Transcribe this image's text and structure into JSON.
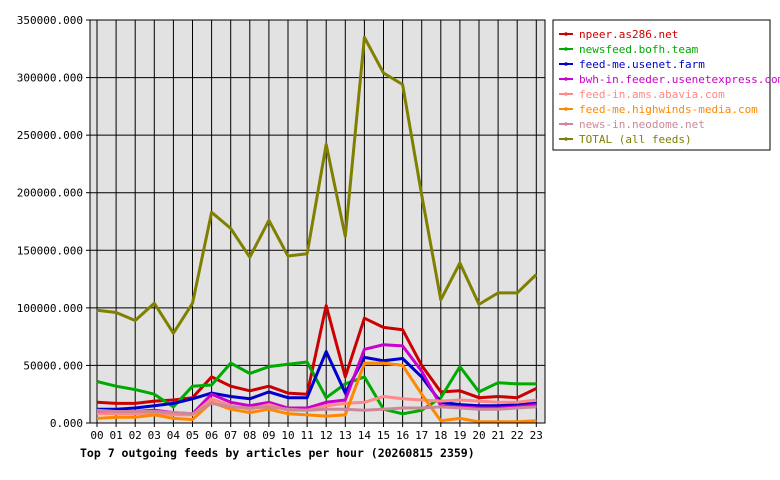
{
  "chart_data": {
    "type": "line",
    "title": "Top 7 outgoing feeds by articles per hour (20260815 2359)",
    "xlabel": "",
    "ylabel": "",
    "categories": [
      "00",
      "01",
      "02",
      "03",
      "04",
      "05",
      "06",
      "07",
      "08",
      "09",
      "10",
      "11",
      "12",
      "13",
      "14",
      "15",
      "16",
      "17",
      "18",
      "19",
      "20",
      "21",
      "22",
      "23"
    ],
    "yticks": [
      "0.000",
      "50000.000",
      "100000.000",
      "150000.000",
      "200000.000",
      "250000.000",
      "300000.000",
      "350000.000"
    ],
    "ylim": [
      0,
      350000
    ],
    "grid": true,
    "legend_position": "right",
    "plot_background": "#e2e2e2",
    "series": [
      {
        "name": "npeer.as286.net",
        "color": "#cc0000",
        "values": [
          18000,
          17000,
          17000,
          19000,
          20000,
          22000,
          40000,
          32000,
          28000,
          32000,
          26000,
          25000,
          102000,
          40000,
          91000,
          83000,
          81000,
          50000,
          27000,
          28000,
          22000,
          23000,
          22000,
          30000
        ]
      },
      {
        "name": "newsfeed.bofh.team",
        "color": "#00aa00",
        "values": [
          36000,
          32000,
          29000,
          25000,
          14000,
          32000,
          33000,
          52000,
          43000,
          49000,
          51000,
          53000,
          22000,
          34000,
          40000,
          12000,
          8000,
          11000,
          22000,
          49000,
          27000,
          35000,
          34000,
          34000
        ]
      },
      {
        "name": "feed-me.usenet.farm",
        "color": "#0000cc",
        "values": [
          12000,
          12000,
          13000,
          15000,
          17000,
          21000,
          26000,
          23000,
          21000,
          27000,
          22000,
          22000,
          62000,
          26000,
          57000,
          54000,
          56000,
          40000,
          18000,
          16000,
          15000,
          15000,
          16000,
          17000
        ]
      },
      {
        "name": "bwh-in.feeder.usenetexpress.com",
        "color": "#cc00cc",
        "values": [
          10000,
          10000,
          10000,
          11000,
          9000,
          8000,
          25000,
          18000,
          15000,
          18000,
          13000,
          13000,
          18000,
          20000,
          64000,
          68000,
          67000,
          45000,
          15000,
          14000,
          13000,
          13000,
          14000,
          16000
        ]
      },
      {
        "name": "feed-in.ams.abavia.com",
        "color": "#ff8888",
        "values": [
          8000,
          8000,
          8000,
          9000,
          7000,
          7000,
          21000,
          15000,
          12000,
          16000,
          11000,
          11000,
          15000,
          17000,
          18000,
          23000,
          21000,
          20000,
          19000,
          20000,
          19000,
          18000,
          18000,
          20000
        ]
      },
      {
        "name": "feed-me.highwinds-media.com",
        "color": "#ff8800",
        "values": [
          4000,
          5000,
          5000,
          7000,
          4000,
          3000,
          18000,
          12000,
          9000,
          12000,
          8000,
          7000,
          6000,
          7000,
          52000,
          52000,
          50000,
          25000,
          2000,
          4000,
          1000,
          1000,
          1000,
          2000
        ]
      },
      {
        "name": "news-in.neodome.net",
        "color": "#cc8899",
        "values": [
          11000,
          10000,
          10000,
          10000,
          9000,
          8000,
          17000,
          14000,
          13000,
          14000,
          12000,
          11000,
          12000,
          12000,
          11000,
          12000,
          13000,
          13000,
          14000,
          13000,
          12000,
          12000,
          13000,
          14000
        ]
      },
      {
        "name": "TOTAL (all feeds)",
        "color": "#808000",
        "values": [
          98000,
          96000,
          89000,
          104000,
          78000,
          104000,
          183000,
          169000,
          144000,
          176000,
          145000,
          147000,
          242000,
          162000,
          335000,
          304000,
          294000,
          198000,
          107000,
          139000,
          103000,
          113000,
          113000,
          129000
        ]
      }
    ]
  }
}
